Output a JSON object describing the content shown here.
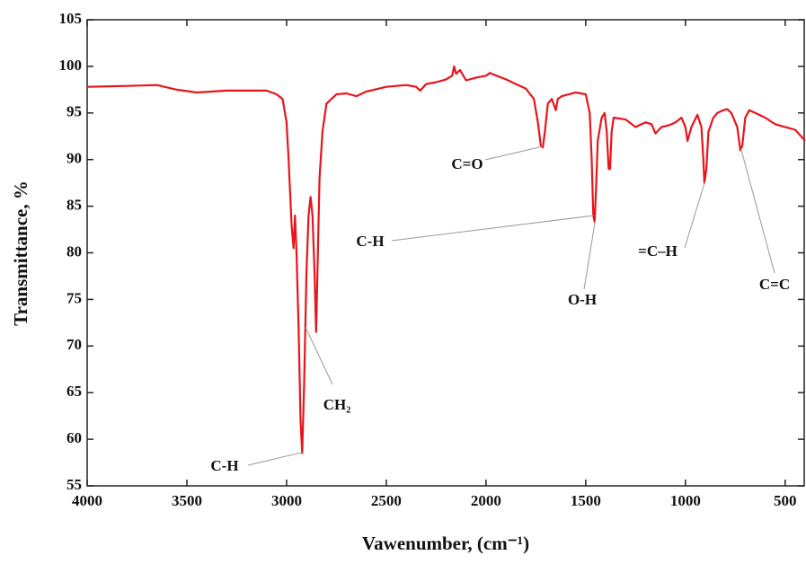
{
  "chart_data": {
    "type": "line",
    "x_label": "Vawenumber, (cm⁻¹)",
    "y_label": "Transmittance, %",
    "color": "#e8141b",
    "xlim": [
      4000,
      400
    ],
    "ylim": [
      55,
      105
    ],
    "xticks": [
      4000,
      3500,
      3000,
      2500,
      2000,
      1500,
      1000,
      500
    ],
    "yticks": [
      55,
      60,
      65,
      70,
      75,
      80,
      85,
      90,
      95,
      100,
      105
    ],
    "x": [
      4000,
      3800,
      3650,
      3550,
      3450,
      3300,
      3100,
      3050,
      3020,
      3000,
      2990,
      2975,
      2965,
      2958,
      2950,
      2940,
      2930,
      2922,
      2912,
      2900,
      2890,
      2880,
      2870,
      2860,
      2852,
      2845,
      2835,
      2820,
      2800,
      2750,
      2700,
      2650,
      2600,
      2500,
      2400,
      2350,
      2330,
      2300,
      2250,
      2200,
      2170,
      2160,
      2150,
      2130,
      2100,
      2050,
      2000,
      1980,
      1960,
      1900,
      1850,
      1800,
      1760,
      1740,
      1725,
      1715,
      1705,
      1690,
      1670,
      1650,
      1640,
      1620,
      1550,
      1500,
      1480,
      1470,
      1462,
      1455,
      1448,
      1440,
      1420,
      1405,
      1395,
      1385,
      1378,
      1370,
      1360,
      1300,
      1250,
      1200,
      1170,
      1150,
      1120,
      1080,
      1050,
      1020,
      1000,
      990,
      970,
      940,
      920,
      910,
      905,
      895,
      885,
      860,
      840,
      810,
      790,
      770,
      740,
      725,
      715,
      700,
      680,
      650,
      600,
      550,
      500,
      450,
      420,
      400
    ],
    "values": [
      97.8,
      97.9,
      98.0,
      97.5,
      97.2,
      97.4,
      97.4,
      97.0,
      96.5,
      94,
      90,
      83,
      80.5,
      84,
      80,
      72,
      62,
      58.5,
      66,
      78,
      84,
      86,
      84,
      78,
      71.5,
      78,
      88,
      93,
      96,
      97,
      97.1,
      96.8,
      97.3,
      97.8,
      98.0,
      97.8,
      97.4,
      98.1,
      98.3,
      98.6,
      99.0,
      100.0,
      99.2,
      99.6,
      98.5,
      98.8,
      99.0,
      99.3,
      99.1,
      98.6,
      98.1,
      97.6,
      96.5,
      94,
      91.5,
      91.3,
      93,
      96,
      96.5,
      95.3,
      96.5,
      96.8,
      97.2,
      97,
      95,
      90,
      84,
      83.3,
      87,
      92,
      94.5,
      95,
      93,
      89,
      89,
      93,
      94.5,
      94.3,
      93.5,
      94,
      93.8,
      92.8,
      93.5,
      93.7,
      94,
      94.5,
      93.5,
      92,
      93.5,
      94.8,
      93.5,
      90,
      87.5,
      89,
      93,
      94.5,
      95,
      95.3,
      95.4,
      95,
      93.5,
      91,
      91.5,
      94.5,
      95.3,
      95,
      94.5,
      93.8,
      93.5,
      93.2,
      92.5,
      92
    ],
    "annotations": [
      {
        "text": "C=O",
        "x": 1718,
        "y": 91.4
      },
      {
        "text": "C-H",
        "x": 1460,
        "y": 84
      },
      {
        "text": "O-H",
        "x": 1452,
        "y": 83.5
      },
      {
        "text": "=C–H",
        "x": 903,
        "y": 87.6
      },
      {
        "text": "C=C",
        "x": 722,
        "y": 91.2
      },
      {
        "text": "CH₂",
        "x": 2905,
        "y": 72
      },
      {
        "text": "C-H",
        "x": 2920,
        "y": 58.6
      }
    ]
  }
}
